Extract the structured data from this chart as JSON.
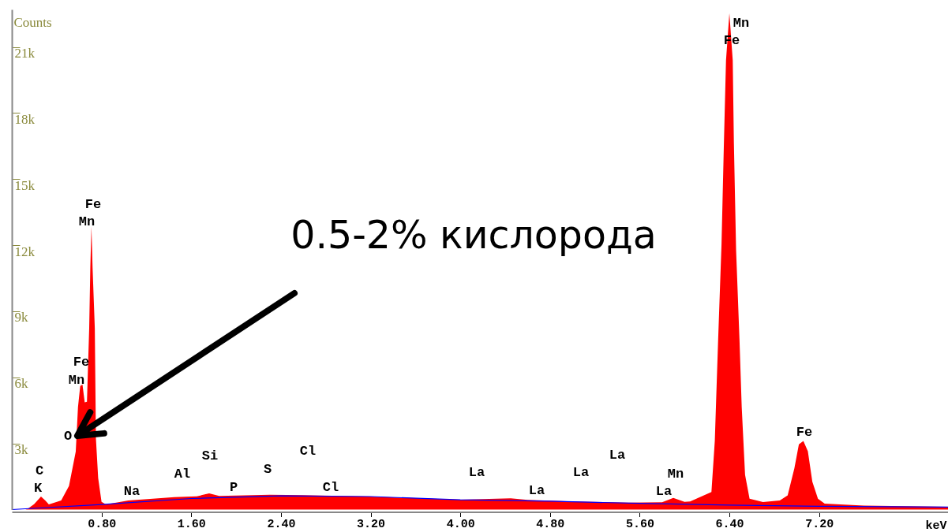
{
  "chart_data": {
    "type": "area",
    "xlabel": "keV",
    "ylabel": "Counts",
    "xlim": [
      0,
      8.35
    ],
    "ylim": [
      0,
      22700
    ],
    "xticks": [
      {
        "value": 0.8,
        "label": "0.80"
      },
      {
        "value": 1.6,
        "label": "1.60"
      },
      {
        "value": 2.4,
        "label": "2.40"
      },
      {
        "value": 3.2,
        "label": "3.20"
      },
      {
        "value": 4.0,
        "label": "4.00"
      },
      {
        "value": 4.8,
        "label": "4.80"
      },
      {
        "value": 5.6,
        "label": "5.60"
      },
      {
        "value": 6.4,
        "label": "6.40"
      },
      {
        "value": 7.2,
        "label": "7.20"
      }
    ],
    "yticks": [
      {
        "value": 3000,
        "label": "3k"
      },
      {
        "value": 6000,
        "label": "6k"
      },
      {
        "value": 9000,
        "label": "9k"
      },
      {
        "value": 12000,
        "label": "12k"
      },
      {
        "value": 15000,
        "label": "15k"
      },
      {
        "value": 18000,
        "label": "18k"
      },
      {
        "value": 21000,
        "label": "21k"
      }
    ],
    "grid": false,
    "marker": "none",
    "series": [
      {
        "color": "#ff0000",
        "x": [
          0.12,
          0.14,
          0.2,
          0.26,
          0.3,
          0.33,
          0.44,
          0.51,
          0.57,
          0.59,
          0.61,
          0.63,
          0.65,
          0.67,
          0.69,
          0.7,
          0.71,
          0.72,
          0.74,
          0.75,
          0.77,
          0.8,
          0.84,
          1.04,
          1.45,
          1.65,
          1.76,
          1.85,
          2.3,
          2.6,
          3.2,
          3.6,
          4.0,
          4.45,
          4.6,
          5.0,
          5.5,
          5.8,
          5.9,
          6.0,
          6.05,
          6.24,
          6.27,
          6.3,
          6.33,
          6.35,
          6.37,
          6.4,
          6.43,
          6.44,
          6.46,
          6.49,
          6.51,
          6.54,
          6.58,
          6.7,
          6.85,
          6.92,
          6.98,
          7.02,
          7.06,
          7.1,
          7.14,
          7.19,
          7.25,
          7.6,
          8.35
        ],
        "values": [
          0,
          30,
          250,
          590,
          400,
          230,
          410,
          1070,
          2630,
          4650,
          5610,
          5670,
          4870,
          4890,
          8240,
          10990,
          12840,
          10990,
          8240,
          3220,
          1430,
          350,
          230,
          410,
          560,
          600,
          735,
          615,
          675,
          650,
          590,
          520,
          450,
          510,
          435,
          365,
          315,
          330,
          530,
          350,
          370,
          800,
          3110,
          7740,
          12060,
          16380,
          20390,
          22530,
          20390,
          16690,
          11760,
          7740,
          4660,
          1570,
          490,
          340,
          410,
          645,
          1880,
          2960,
          3110,
          2650,
          1260,
          490,
          270,
          180,
          125
        ]
      },
      {
        "type": "line",
        "color": "#0000ff",
        "x": [
          0,
          0.8,
          1.6,
          2.4,
          3.2,
          4.0,
          4.8,
          5.6,
          6.4,
          7.2,
          8.35
        ],
        "values": [
          0,
          230,
          500,
          620,
          590,
          440,
          380,
          280,
          200,
          150,
          110
        ]
      }
    ],
    "annotations": [
      "C",
      "K",
      "O",
      "Fe",
      "Mn",
      "Fe",
      "Mn",
      "Na",
      "Al",
      "Si",
      "P",
      "S",
      "Cl",
      "Cl",
      "La",
      "La",
      "La",
      "La",
      "Mn",
      "La",
      "Mn",
      "Fe",
      "Fe",
      "0.5-2% кислорода"
    ]
  }
}
